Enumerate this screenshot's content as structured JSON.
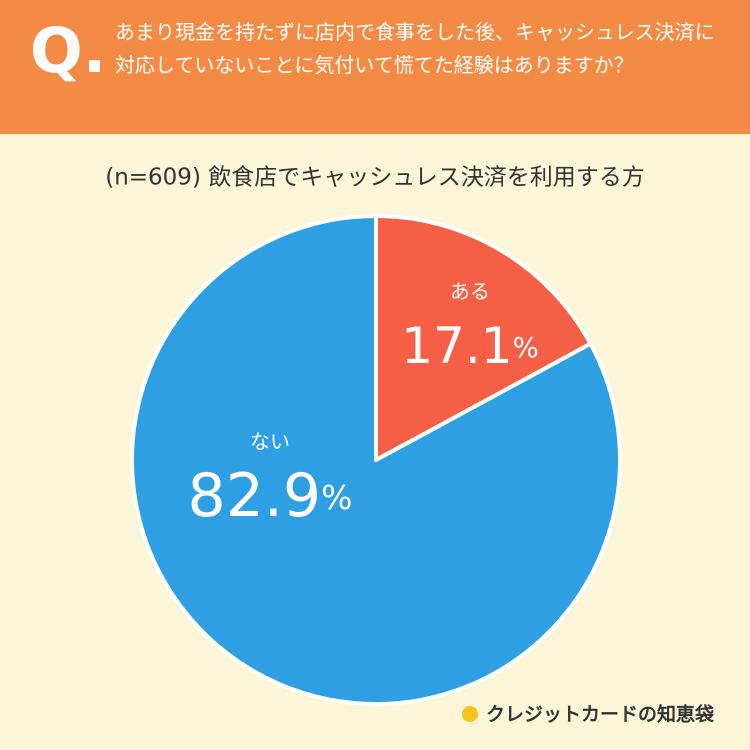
{
  "chart_data": {
    "type": "pie",
    "badge": "Q.",
    "title": "あまり現金を持たずに店内で食事をした後、キャッシュレス決済に対応していないことに気付いて慌てた経験はありますか？",
    "subtitle": "(n=609) 飲食店でキャッシュレス決済を利用する方",
    "categories": [
      "ある",
      "ない"
    ],
    "values": [
      17.1,
      82.9
    ],
    "value_labels": [
      "17.1%",
      "82.9%"
    ],
    "colors": [
      "#f45f45",
      "#2e9fe2"
    ],
    "source": "クレジットカードの知恵袋"
  }
}
